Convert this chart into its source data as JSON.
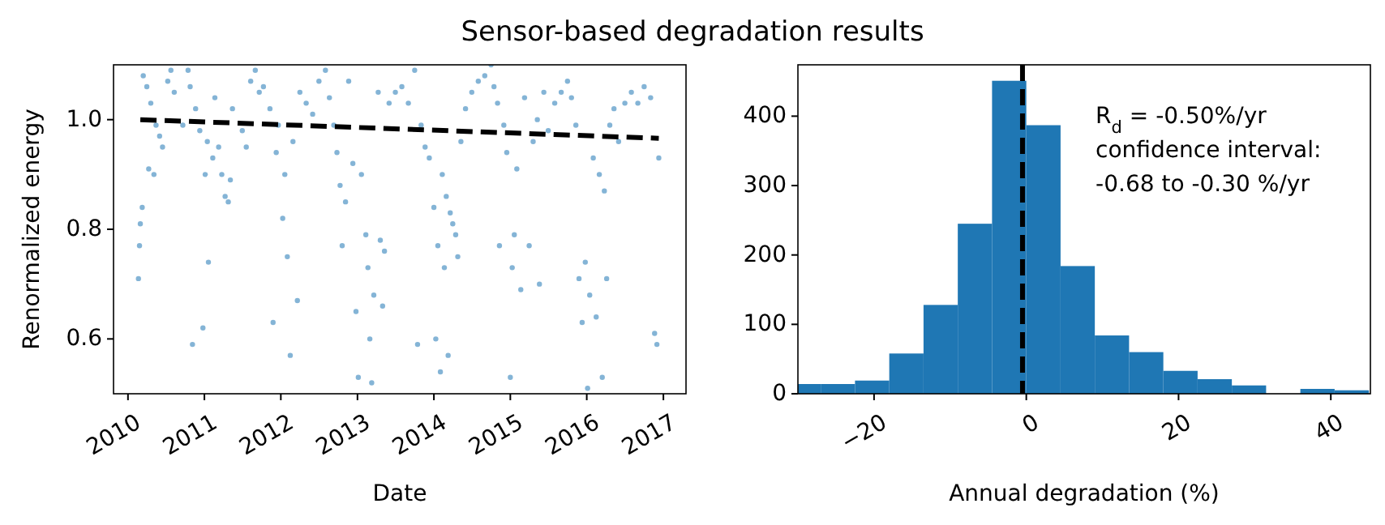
{
  "chart_data": [
    {
      "type": "scatter",
      "title": "Sensor-based degradation results",
      "xlabel": "Date",
      "ylabel": "Renormalized energy",
      "xlim": [
        "2009-10-24",
        "2017-04-19"
      ],
      "ylim": [
        0.5,
        1.1
      ],
      "xticks": [
        "2010",
        "2011",
        "2012",
        "2013",
        "2014",
        "2015",
        "2016",
        "2017"
      ],
      "yticks": [
        0.6,
        0.8,
        {
          "value": 1.0,
          "label": "1.0"
        }
      ],
      "series": [
        {
          "type": "scatter",
          "marker": "circle",
          "color": "#1f77b4",
          "x": [
            "2010-02-20",
            "2010-02-25",
            "2010-03-01",
            "2010-03-10",
            "2010-03-15",
            "2010-04-01",
            "2010-04-10",
            "2010-04-20",
            "2010-05-05",
            "2010-05-15",
            "2010-06-01",
            "2010-06-15",
            "2010-07-10",
            "2010-07-25",
            "2010-08-10",
            "2010-09-20",
            "2010-10-15",
            "2010-10-25",
            "2010-11-05",
            "2010-11-20",
            "2010-12-10",
            "2010-12-25",
            "2011-01-05",
            "2011-01-15",
            "2011-01-20",
            "2011-02-10",
            "2011-02-20",
            "2011-03-10",
            "2011-03-25",
            "2011-04-10",
            "2011-04-25",
            "2011-05-05",
            "2011-05-15",
            "2011-07-01",
            "2011-07-20",
            "2011-08-10",
            "2011-09-01",
            "2011-09-20",
            "2011-10-10",
            "2011-11-10",
            "2011-11-25",
            "2011-12-10",
            "2011-12-20",
            "2012-01-10",
            "2012-01-20",
            "2012-02-01",
            "2012-02-15",
            "2012-02-28",
            "2012-03-20",
            "2012-04-01",
            "2012-05-01",
            "2012-06-01",
            "2012-07-01",
            "2012-08-01",
            "2012-08-20",
            "2012-09-10",
            "2012-09-25",
            "2012-10-10",
            "2012-10-20",
            "2012-11-05",
            "2012-11-20",
            "2012-12-10",
            "2012-12-25",
            "2013-01-05",
            "2013-01-20",
            "2013-02-10",
            "2013-02-20",
            "2013-03-01",
            "2013-03-10",
            "2013-03-20",
            "2013-04-10",
            "2013-04-20",
            "2013-05-01",
            "2013-05-10",
            "2013-06-01",
            "2013-07-01",
            "2013-08-01",
            "2013-09-01",
            "2013-10-01",
            "2013-10-15",
            "2013-11-01",
            "2013-11-20",
            "2013-12-10",
            "2014-01-01",
            "2014-01-10",
            "2014-01-20",
            "2014-02-01",
            "2014-02-10",
            "2014-02-20",
            "2014-03-01",
            "2014-03-10",
            "2014-03-20",
            "2014-04-01",
            "2014-04-15",
            "2014-04-25",
            "2014-05-10",
            "2014-06-01",
            "2014-07-01",
            "2014-08-01",
            "2014-09-01",
            "2014-10-01",
            "2014-10-15",
            "2014-11-01",
            "2014-11-10",
            "2014-12-01",
            "2014-12-15",
            "2015-01-01",
            "2015-01-10",
            "2015-01-20",
            "2015-02-01",
            "2015-02-20",
            "2015-03-10",
            "2015-04-01",
            "2015-04-20",
            "2015-05-10",
            "2015-05-20",
            "2015-06-10",
            "2015-07-01",
            "2015-08-01",
            "2015-09-01",
            "2015-10-01",
            "2015-10-20",
            "2015-11-10",
            "2015-11-25",
            "2015-12-10",
            "2015-12-25",
            "2016-01-05",
            "2016-01-15",
            "2016-02-01",
            "2016-02-15",
            "2016-03-01",
            "2016-03-15",
            "2016-03-25",
            "2016-04-05",
            "2016-04-20",
            "2016-05-10",
            "2016-06-01",
            "2016-07-01",
            "2016-08-01",
            "2016-09-01",
            "2016-10-01",
            "2016-11-01",
            "2016-11-20",
            "2016-12-01",
            "2016-12-10"
          ],
          "values": [
            0.71,
            0.77,
            0.81,
            0.84,
            1.08,
            1.06,
            0.91,
            1.03,
            0.9,
            0.99,
            0.97,
            0.95,
            1.07,
            1.09,
            1.05,
            0.99,
            1.09,
            1.06,
            0.59,
            1.02,
            0.98,
            0.62,
            0.9,
            0.96,
            0.74,
            0.93,
            1.04,
            0.95,
            0.9,
            0.86,
            0.85,
            0.89,
            1.02,
            0.98,
            0.95,
            1.07,
            1.09,
            1.05,
            1.06,
            1.02,
            0.63,
            0.94,
            0.99,
            0.82,
            0.9,
            0.75,
            0.57,
            0.96,
            0.67,
            1.05,
            1.03,
            1.01,
            1.07,
            1.09,
            1.04,
            0.99,
            0.94,
            0.88,
            0.77,
            0.85,
            1.07,
            0.92,
            0.65,
            0.53,
            0.9,
            0.79,
            0.73,
            0.6,
            0.52,
            0.68,
            1.05,
            0.78,
            0.66,
            0.76,
            1.03,
            1.05,
            1.06,
            1.03,
            1.09,
            0.59,
            0.99,
            0.95,
            0.93,
            0.84,
            0.6,
            0.77,
            0.54,
            0.9,
            0.73,
            0.86,
            0.57,
            0.83,
            0.81,
            0.79,
            0.75,
            0.96,
            1.02,
            1.05,
            1.07,
            1.08,
            1.1,
            1.06,
            1.03,
            0.77,
            0.99,
            0.94,
            0.53,
            0.73,
            0.79,
            0.91,
            0.69,
            1.04,
            0.77,
            0.96,
            1.0,
            0.7,
            1.05,
            0.98,
            1.03,
            1.05,
            1.07,
            1.04,
            0.99,
            0.71,
            0.63,
            0.74,
            0.51,
            0.68,
            0.93,
            0.64,
            0.9,
            0.53,
            0.87,
            0.71,
            0.99,
            1.02,
            0.96,
            1.03,
            1.05,
            1.03,
            1.06,
            1.04,
            0.61,
            0.59,
            0.93
          ]
        },
        {
          "type": "line",
          "marker": "none",
          "color": "#000000",
          "line_style": "dashed",
          "x": [
            "2010-03-01",
            "2016-12-10"
          ],
          "values": [
            1.0,
            0.966
          ]
        }
      ]
    },
    {
      "type": "histogram",
      "xlabel": "Annual degradation (%)",
      "color": "#1f77b4",
      "xlim": [
        -30,
        45.2
      ],
      "ylim": [
        0,
        474
      ],
      "xticks": [
        {
          "value": -20,
          "label": "−20"
        },
        0,
        20,
        40
      ],
      "yticks": [
        0,
        100,
        200,
        300,
        400
      ],
      "bins": [
        -30,
        -27,
        -22.5,
        -18,
        -13.5,
        -9,
        -4.5,
        0,
        4.5,
        9,
        13.5,
        18,
        22.5,
        27,
        31.5,
        36,
        40.5,
        45
      ],
      "values": [
        14,
        14,
        19,
        58,
        128,
        245,
        451,
        387,
        184,
        84,
        60,
        33,
        21,
        12,
        0,
        7,
        5
      ],
      "ref_lines": [
        {
          "axis": "x",
          "value": -0.5,
          "color": "#000000",
          "line_style": "dashed"
        }
      ],
      "annotations": [
        " R$_{d}$ = -0.50%/yr\nconfidence interval:\n-0.68 to -0.30 %/yr"
      ]
    }
  ]
}
